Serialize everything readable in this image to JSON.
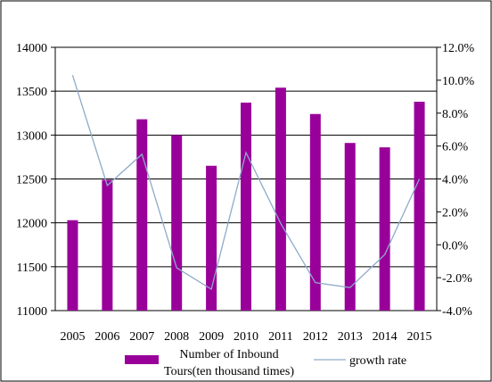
{
  "chart_data": {
    "type": "bar",
    "categories": [
      "2005",
      "2006",
      "2007",
      "2008",
      "2009",
      "2010",
      "2011",
      "2012",
      "2013",
      "2014",
      "2015"
    ],
    "series": [
      {
        "name": "Number of Inbound Tours(ten thousand times)",
        "type": "bar",
        "axis": "left",
        "values": [
          12030,
          12490,
          13180,
          13000,
          12650,
          13370,
          13540,
          13240,
          12910,
          12860,
          13380
        ]
      },
      {
        "name": "growth rate",
        "type": "line",
        "axis": "right",
        "values": [
          10.3,
          3.6,
          5.5,
          -1.4,
          -2.7,
          5.6,
          1.3,
          -2.3,
          -2.6,
          -0.6,
          4.0
        ]
      }
    ],
    "y_left": {
      "ticks": [
        "11000",
        "11500",
        "12000",
        "12500",
        "13000",
        "13500",
        "14000"
      ],
      "min": 11000,
      "max": 14000
    },
    "y_right": {
      "ticks": [
        "-4.0%",
        "-2.0%",
        "0.0%",
        "2.0%",
        "4.0%",
        "6.0%",
        "8.0%",
        "10.0%",
        "12.0%"
      ],
      "min": -4,
      "max": 12
    },
    "legend": {
      "bar_label_line1": "Number of Inbound",
      "bar_label_line2": "Tours(ten thousand times)",
      "line_label": "growth rate",
      "position": "bottom"
    },
    "colors": {
      "bar": "#990099",
      "line": "#8eaacb",
      "grid": "#000000"
    },
    "grid": true
  }
}
